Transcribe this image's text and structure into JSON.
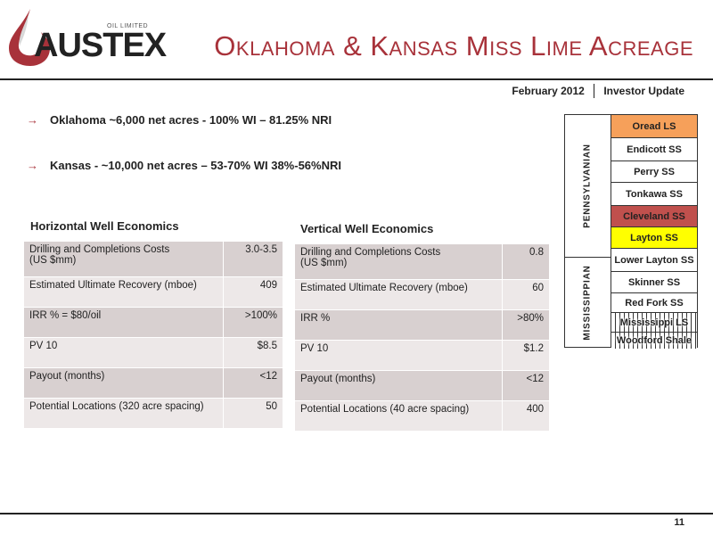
{
  "logo": {
    "tag": "OIL LIMITED",
    "name": "AUSTEX"
  },
  "title": "Oklahoma & Kansas Miss Lime Acreage",
  "subheader": {
    "date": "February 2012",
    "label": "Investor Update"
  },
  "bullets": [
    "Oklahoma ~6,000 net acres - 100% WI – 81.25% NRI",
    "Kansas - ~10,000 net acres – 53-70% WI 38%-56%NRI"
  ],
  "horizontal": {
    "title": "Horizontal Well Economics",
    "rows": [
      {
        "label": "Drilling and Completions Costs",
        "label2": "(US $mm)",
        "value": "3.0-3.5"
      },
      {
        "label": "Estimated Ultimate Recovery (mboe)",
        "value": "409"
      },
      {
        "label": "IRR % = $80/oil",
        "value": ">100%"
      },
      {
        "label": "PV 10",
        "value": "$8.5"
      },
      {
        "label": "Payout (months)",
        "value": "<12"
      },
      {
        "label": "Potential Locations (320 acre spacing)",
        "value": "50"
      }
    ]
  },
  "vertical": {
    "title": "Vertical Well Economics",
    "rows": [
      {
        "label": "Drilling and Completions Costs",
        "label2": "(US $mm)",
        "value": "0.8"
      },
      {
        "label": "Estimated Ultimate Recovery (mboe)",
        "value": "60"
      },
      {
        "label": "IRR %",
        "value": ">80%"
      },
      {
        "label": "PV 10",
        "value": "$1.2"
      },
      {
        "label": "Payout (months)",
        "value": "<12"
      },
      {
        "label": "Potential Locations (40 acre spacing)",
        "value": "400"
      }
    ]
  },
  "strat": {
    "eras": [
      "PENNSYLVANIAN",
      "MISSISSIPPIAN"
    ],
    "layers": [
      {
        "name": "Oread LS",
        "color": "#f6a05a"
      },
      {
        "name": "Endicott SS",
        "color": "#ffffff"
      },
      {
        "name": "Perry SS",
        "color": "#ffffff"
      },
      {
        "name": "Tonkawa SS",
        "color": "#ffffff"
      },
      {
        "name": "Cleveland SS",
        "color": "#c0504d"
      },
      {
        "name": "Layton SS",
        "color": "#ffff00"
      },
      {
        "name": "Lower Layton SS",
        "color": "#ffffff"
      },
      {
        "name": "Skinner SS",
        "color": "#ffffff"
      },
      {
        "name": "Red Fork SS",
        "color": "#ffffff"
      },
      {
        "name": "Mississippi LS",
        "color": "hatched"
      },
      {
        "name": "Woodford Shale",
        "color": "hatched"
      }
    ]
  },
  "page_number": "11"
}
